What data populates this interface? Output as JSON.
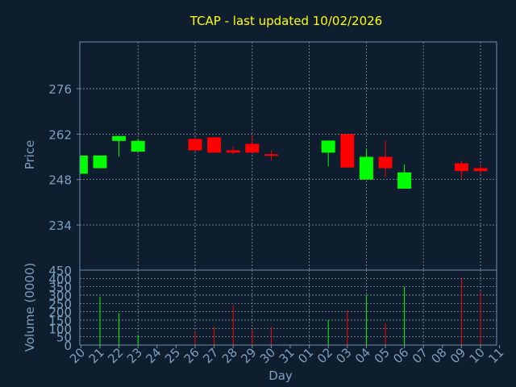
{
  "chart_data": {
    "type": "candlestick",
    "title": "TCAP - last updated 10/02/2026",
    "colors": {
      "background": "#0f1e2e",
      "axis": "#6f8fb0",
      "grid": "#9aa7b5",
      "label": "#7f9fbf",
      "title": "#ffff00",
      "up": "#00ff00",
      "down": "#ff0000"
    },
    "price_panel": {
      "ylabel": "Price",
      "ylim": [
        220.1,
        290.4
      ],
      "yticks": [
        234,
        248,
        262,
        276
      ]
    },
    "volume_panel": {
      "ylabel": "Volume (0000)",
      "ylim": [
        0,
        450
      ],
      "yticks": [
        0,
        50,
        100,
        150,
        200,
        250,
        300,
        350,
        400,
        450
      ]
    },
    "xlabel": "Day",
    "x_labels": [
      "20",
      "21",
      "22",
      "23",
      "24",
      "25",
      "26",
      "27",
      "28",
      "29",
      "30",
      "31",
      "01",
      "02",
      "03",
      "04",
      "05",
      "06",
      "07",
      "08",
      "09",
      "10",
      "11"
    ],
    "candles": [
      {
        "day": "20",
        "open": 249.8,
        "close": 255.4,
        "high": 255.4,
        "low": 249.8,
        "volume": 0
      },
      {
        "day": "21",
        "open": 251.5,
        "close": 255.4,
        "high": 255.4,
        "low": 251.5,
        "volume": 290
      },
      {
        "day": "22",
        "open": 259.9,
        "close": 261.4,
        "high": 261.4,
        "low": 255.0,
        "volume": 190
      },
      {
        "day": "23",
        "open": 256.6,
        "close": 259.9,
        "high": 260.5,
        "low": 256.6,
        "volume": 60
      },
      {
        "day": "26",
        "open": 260.5,
        "close": 257.0,
        "high": 261.0,
        "low": 256.6,
        "volume": 80
      },
      {
        "day": "27",
        "open": 261.0,
        "close": 256.3,
        "high": 261.0,
        "low": 256.3,
        "volume": 110
      },
      {
        "day": "28",
        "open": 257.0,
        "close": 256.3,
        "high": 258.2,
        "low": 255.8,
        "volume": 240
      },
      {
        "day": "29",
        "open": 259.0,
        "close": 256.3,
        "high": 261.4,
        "low": 256.3,
        "volume": 90
      },
      {
        "day": "30",
        "open": 255.8,
        "close": 255.4,
        "high": 257.0,
        "low": 253.8,
        "volume": 110
      },
      {
        "day": "02",
        "open": 256.3,
        "close": 260.0,
        "high": 260.0,
        "low": 252.1,
        "volume": 150
      },
      {
        "day": "03",
        "open": 262.0,
        "close": 251.7,
        "high": 262.0,
        "low": 251.7,
        "volume": 210
      },
      {
        "day": "04",
        "open": 248.0,
        "close": 255.0,
        "high": 257.4,
        "low": 248.0,
        "volume": 300
      },
      {
        "day": "05",
        "open": 255.0,
        "close": 251.5,
        "high": 259.9,
        "low": 248.7,
        "volume": 130
      },
      {
        "day": "06",
        "open": 245.2,
        "close": 250.2,
        "high": 252.7,
        "low": 245.2,
        "volume": 350
      },
      {
        "day": "09",
        "open": 253.0,
        "close": 250.6,
        "high": 253.8,
        "low": 248.2,
        "volume": 400
      },
      {
        "day": "10",
        "open": 251.5,
        "close": 250.6,
        "high": 252.5,
        "low": 249.8,
        "volume": 320
      }
    ]
  }
}
